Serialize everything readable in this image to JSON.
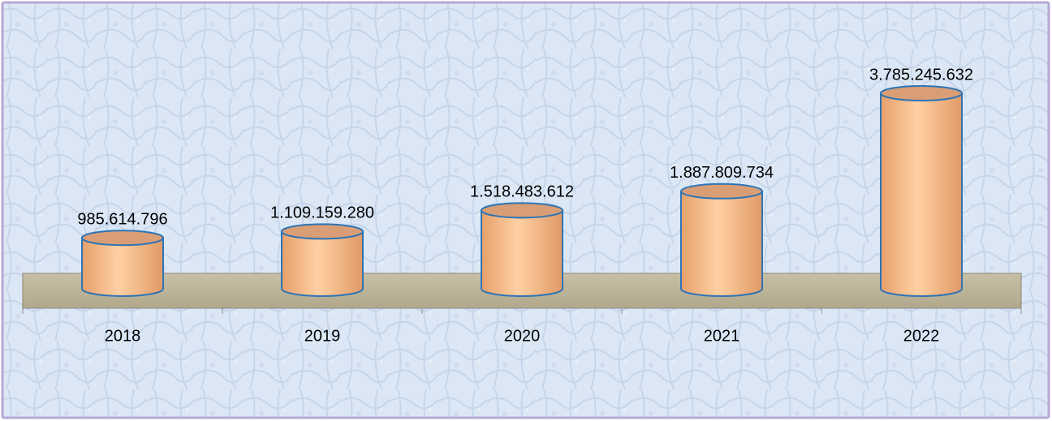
{
  "chart_data": {
    "type": "cylinder",
    "categories": [
      "2018",
      "2019",
      "2020",
      "2021",
      "2022"
    ],
    "values": [
      985614796,
      1109159280,
      1518483612,
      1887809734,
      3785245632
    ],
    "value_labels": [
      "985.614.796",
      "1.109.159.280",
      "1.518.483.612",
      "1.887.809.734",
      "3.785.245.632"
    ],
    "color": "#fbc28f"
  }
}
